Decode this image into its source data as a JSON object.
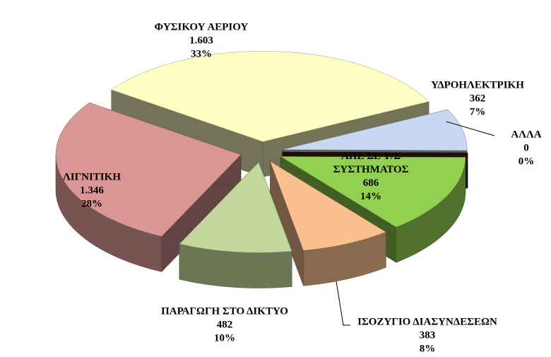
{
  "chart_data": {
    "type": "pie3d",
    "categories": [
      "ΦΥΣΙΚΟΥ ΑΕΡΙΟΥ",
      "ΥΔΡΟΗΛΕΚΤΡΙΚΗ",
      "ΑΛΛΑ",
      "ΑΠΕ ΣΕ Υ/Σ ΣΥΣΤΗΜΑΤΟΣ",
      "ΙΣΟΖΥΓΙΟ ΔΙΑΣΥΝΔΕΣΕΩΝ",
      "ΠΑΡΑΓΩΓΗ ΣΤΟ ΔΙΚΤΥΟ",
      "ΛΙΓΝΙΤΙΚΗ"
    ],
    "values": [
      1603,
      362,
      0,
      686,
      383,
      482,
      1346
    ],
    "value_labels": [
      "1.603",
      "362",
      "0",
      "686",
      "383",
      "482",
      "1.346"
    ],
    "percent_labels": [
      "33%",
      "7%",
      "0%",
      "14%",
      "8%",
      "10%",
      "28%"
    ],
    "colors": [
      "#ffffc4",
      "#c6d9f1",
      "#4a1c05",
      "#92d050",
      "#fac090",
      "#c3d69b",
      "#d99694"
    ]
  }
}
